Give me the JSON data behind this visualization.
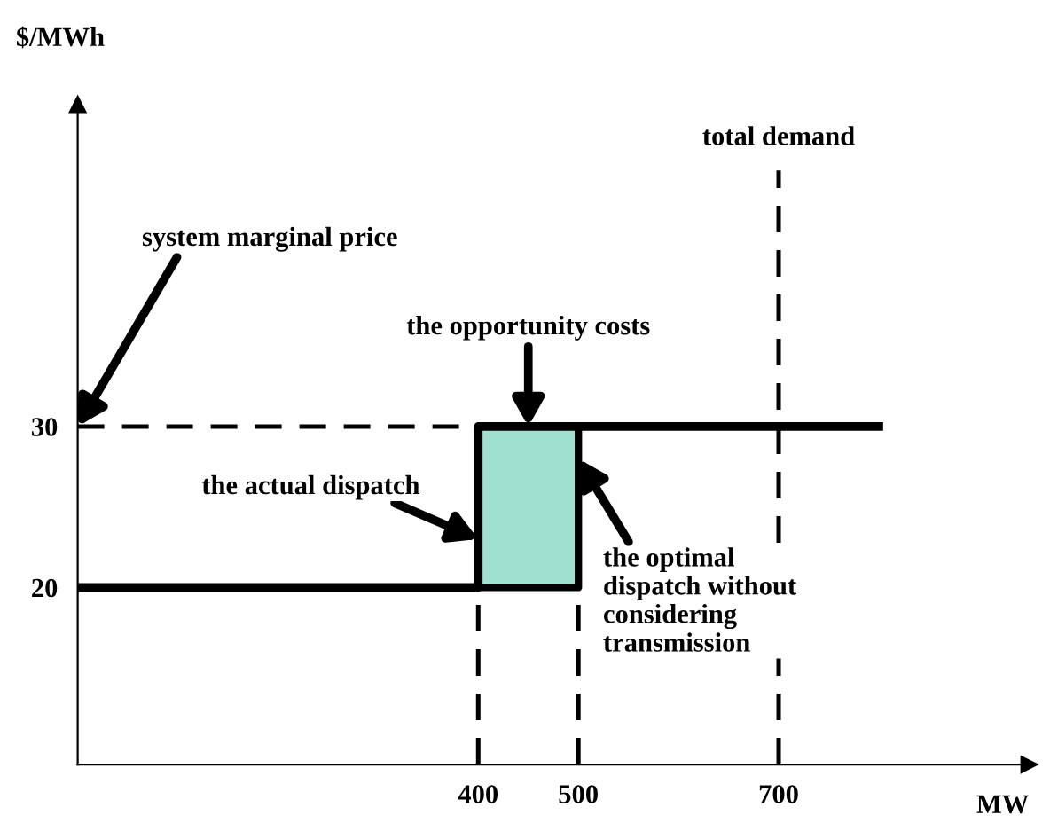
{
  "chart_data": {
    "type": "line",
    "xlabel": "MW",
    "ylabel": "$/MWh",
    "xlim": [
      0,
      950
    ],
    "ylim": [
      9,
      50
    ],
    "xticks": [
      400,
      500,
      700
    ],
    "yticks": [
      20,
      30
    ],
    "series": [
      {
        "color": "#000000",
        "x": [
          0,
          400,
          400,
          800
        ],
        "values": [
          20,
          20,
          30,
          30
        ]
      },
      {
        "type": "area",
        "color": "#9fe0d0",
        "x": [
          400,
          400,
          500,
          500
        ],
        "values": [
          20,
          30,
          30,
          20
        ]
      }
    ],
    "ref_lines": [
      {
        "axis": "y",
        "value": 30,
        "label": null,
        "line_style": "dashed",
        "color": "#000000"
      },
      {
        "axis": "x",
        "value": 400,
        "label": null,
        "line_style": "dashed",
        "color": "#000000"
      },
      {
        "axis": "x",
        "value": 500,
        "label": null,
        "line_style": "dashed",
        "color": "#000000"
      },
      {
        "axis": "x",
        "value": 700,
        "label": "total demand",
        "line_style": "dashed",
        "color": "#000000"
      }
    ],
    "annotations": [
      {
        "text": "system marginal price",
        "x": 0,
        "y": 30
      },
      {
        "text": "the opportunity costs",
        "x": 450,
        "y": 30
      },
      {
        "text": "the actual dispatch",
        "x": 400,
        "y": 23
      },
      {
        "text": "the optimal\ndispatch without\nconsidering\ntransmission",
        "x": 500,
        "y": 28
      }
    ],
    "marker": "none",
    "line_style": "solid"
  }
}
